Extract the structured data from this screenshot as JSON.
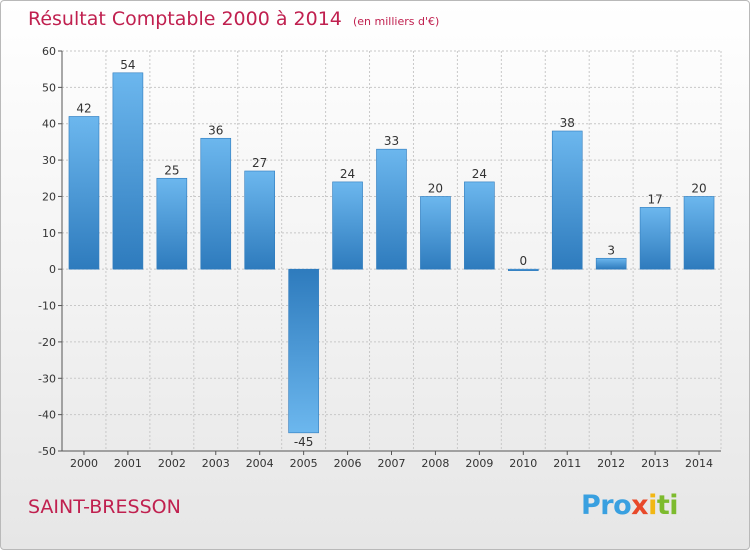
{
  "header": {
    "title": "Résultat Comptable 2000 à 2014",
    "subtitle": "(en milliers d'€)"
  },
  "footer": {
    "commune": "SAINT-BRESSON",
    "logo": {
      "p1": "Pro",
      "p2": "x",
      "p3": "i",
      "p4": "ti"
    }
  },
  "colors": {
    "title": "#c0204f",
    "bar_light": "#6cb7ee",
    "bar_dark": "#2e7bbd",
    "grid": "#c8c8c8",
    "axis_text": "#333333"
  },
  "chart_data": {
    "type": "bar",
    "title": "Résultat Comptable 2000 à 2014",
    "subtitle": "(en milliers d'€)",
    "xlabel": "",
    "ylabel": "",
    "categories": [
      "2000",
      "2001",
      "2002",
      "2003",
      "2004",
      "2005",
      "2006",
      "2007",
      "2008",
      "2009",
      "2010",
      "2011",
      "2012",
      "2013",
      "2014"
    ],
    "values": [
      42,
      54,
      25,
      36,
      27,
      -45,
      24,
      33,
      20,
      24,
      0,
      38,
      3,
      17,
      20
    ],
    "ylim": [
      -50,
      60
    ],
    "yticks": [
      -50,
      -40,
      -30,
      -20,
      -10,
      0,
      10,
      20,
      30,
      40,
      50,
      60
    ],
    "grid": true,
    "data_labels": true
  }
}
